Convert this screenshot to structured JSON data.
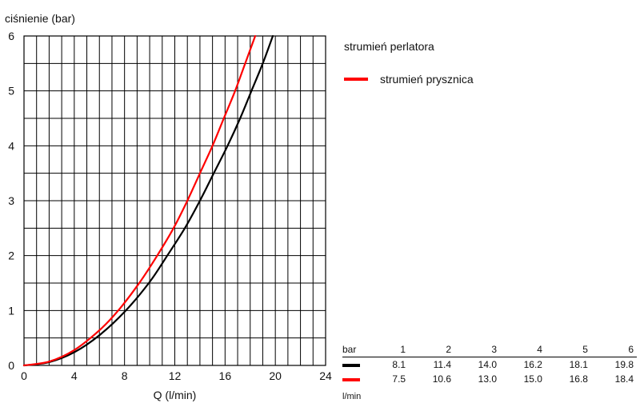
{
  "chart_data": {
    "type": "line",
    "title": "",
    "ylabel": "ciśnienie (bar)",
    "xlabel": "Q (l/min)",
    "xlim": [
      0,
      24
    ],
    "ylim": [
      0,
      6
    ],
    "x_ticks": [
      0,
      4,
      8,
      12,
      16,
      20,
      24
    ],
    "y_ticks": [
      0,
      1,
      2,
      3,
      4,
      5,
      6
    ],
    "x_minor_step": 1,
    "y_minor_step": 0.5,
    "grid": true,
    "series": [
      {
        "name": "strumień perlatora",
        "color": "#000000",
        "x": [
          0,
          2,
          4,
          6,
          8.1,
          10,
          11.4,
          12.8,
          14.0,
          15.1,
          16.2,
          17.2,
          18.1,
          19.0,
          19.8
        ],
        "y": [
          0,
          0.06,
          0.24,
          0.55,
          1,
          1.52,
          2,
          2.5,
          3,
          3.5,
          4,
          4.5,
          5,
          5.5,
          6
        ]
      },
      {
        "name": "strumień prysznica",
        "color": "#ff0000",
        "x": [
          0,
          2,
          4,
          6,
          7.5,
          9.2,
          10.6,
          11.9,
          13.0,
          14.0,
          15.0,
          15.9,
          16.8,
          17.6,
          18.4
        ],
        "y": [
          0,
          0.07,
          0.28,
          0.64,
          1,
          1.51,
          2,
          2.5,
          3,
          3.5,
          4,
          4.5,
          5,
          5.5,
          6
        ]
      }
    ]
  },
  "legend": {
    "black_label": "strumień perlatora",
    "red_label": "strumień prysznica"
  },
  "table": {
    "header_unit": "bar",
    "pressures": [
      "1",
      "2",
      "3",
      "4",
      "5",
      "6"
    ],
    "black_values": [
      "8.1",
      "11.4",
      "14.0",
      "16.2",
      "18.1",
      "19.8"
    ],
    "red_values": [
      "7.5",
      "10.6",
      "13.0",
      "15.0",
      "16.8",
      "18.4"
    ],
    "row_unit": "l/min",
    "black_color": "#000000",
    "red_color": "#ff0000"
  }
}
